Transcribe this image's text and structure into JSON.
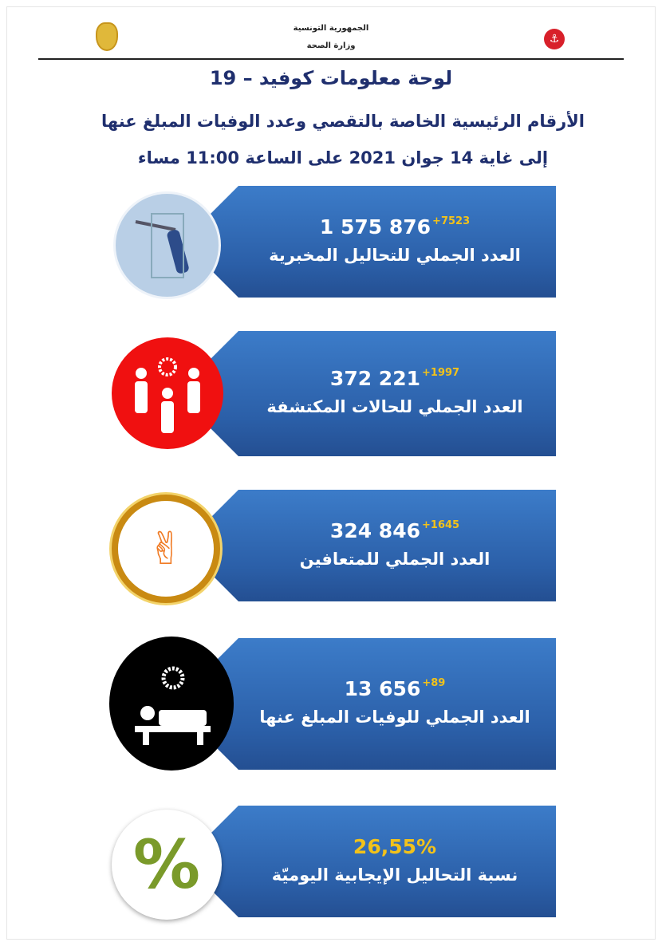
{
  "header": {
    "country": "الجمهورية التونسية",
    "ministry": "وزارة الصحة"
  },
  "title": "لوحة معلومات كوفيد – 19",
  "subtitle": "الأرقام الرئيسية الخاصة بالتقصي وعدد الوفيات المبلغ عنها",
  "date_line": "إلى غاية 14 جوان 2021 على الساعة 11:00 مساء",
  "colors": {
    "card_blue": "#2b5fa8",
    "increment_yellow": "#f2c21a",
    "title_navy": "#1f2f6e"
  },
  "cards": [
    {
      "icon": "lab-test-swab-icon",
      "value": "1 575 876",
      "increment": "+7523",
      "label": "العدد الجملي للتحاليل المخبرية"
    },
    {
      "icon": "people-virus-icon",
      "value": "372 221",
      "increment": "+1997",
      "label": "العدد  الجملي للحالات المكتشفة"
    },
    {
      "icon": "victory-hand-icon",
      "value": "324 846",
      "increment": "+1645",
      "label": "العدد الجملي للمتعافين"
    },
    {
      "icon": "patient-bed-virus-icon",
      "value": "13 656",
      "increment": "+89",
      "label": "العدد الجملي للوفيات المبلغ عنها"
    },
    {
      "icon": "percent-icon",
      "value": "26,55%",
      "increment": "",
      "label": "نسبة التحاليل الإيجابية اليوميّة"
    }
  ]
}
